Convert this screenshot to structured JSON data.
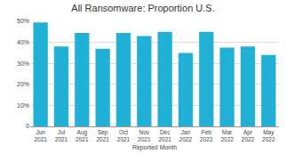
{
  "chart_data": {
    "type": "bar",
    "title": "All Ransomware: Proportion U.S.",
    "x_label": "Reported Month",
    "categories": [
      "Jun 2021",
      "Jul 2021",
      "Aug 2021",
      "Sep 2021",
      "Oct 2021",
      "Nov 2021",
      "Dec 2021",
      "Jan 2022",
      "Feb 2022",
      "Mar 2022",
      "Apr 2022",
      "May 2022"
    ],
    "values": [
      49.5,
      38,
      44.5,
      37,
      44.5,
      43,
      45,
      35,
      45,
      37.5,
      38,
      34
    ],
    "color": "#22b1d6",
    "ylim": [
      0,
      50
    ],
    "yticks": [
      0,
      {
        "value": 10,
        "label": "10%"
      },
      {
        "value": 20,
        "label": "20%"
      },
      {
        "value": 30,
        "label": "30%"
      },
      {
        "value": 40,
        "label": "40%"
      },
      {
        "value": 50,
        "label": "50%"
      }
    ],
    "grid": true
  }
}
